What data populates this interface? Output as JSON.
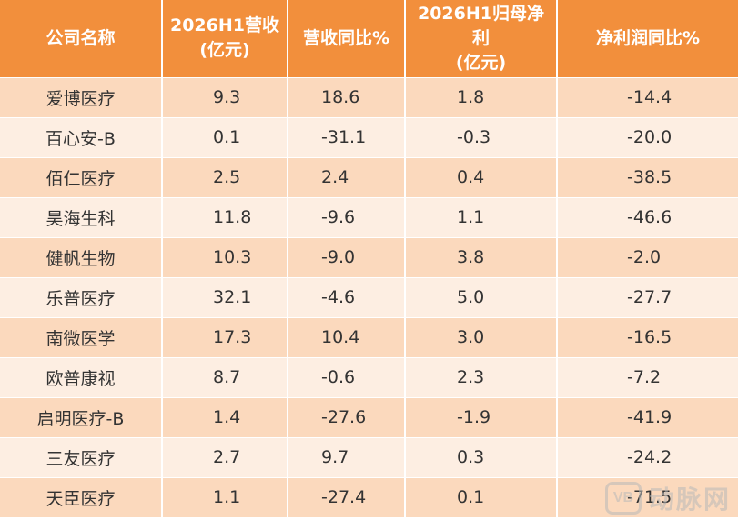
{
  "table": {
    "headers": [
      "公司名称",
      "2026H1营收\n(亿元)",
      "营收同比%",
      "2026H1归母净利\n(亿元)",
      "净利润同比%"
    ],
    "rows": [
      [
        "爱博医疗",
        "9.3",
        "18.6",
        "1.8",
        "-14.4"
      ],
      [
        "百心安-B",
        "0.1",
        "-31.1",
        "-0.3",
        "-20.0"
      ],
      [
        "佰仁医疗",
        "2.5",
        "2.4",
        "0.4",
        "-38.5"
      ],
      [
        "昊海生科",
        "11.8",
        "-9.6",
        "1.1",
        "-46.6"
      ],
      [
        "健帆生物",
        "10.3",
        "-9.0",
        "3.8",
        "-2.0"
      ],
      [
        "乐普医疗",
        "32.1",
        "-4.6",
        "5.0",
        "-27.7"
      ],
      [
        "南微医学",
        "17.3",
        "10.4",
        "3.0",
        "-16.5"
      ],
      [
        "欧普康视",
        "8.7",
        "-0.6",
        "2.3",
        "-7.2"
      ],
      [
        "启明医疗-B",
        "1.4",
        "-27.6",
        "-1.9",
        "-41.9"
      ],
      [
        "三友医疗",
        "2.7",
        "9.7",
        "0.3",
        "-24.2"
      ],
      [
        "天臣医疗",
        "1.1",
        "-27.4",
        "0.1",
        "-71.5"
      ]
    ]
  },
  "watermark": {
    "logo_text": "VB",
    "text": "动脉网"
  }
}
